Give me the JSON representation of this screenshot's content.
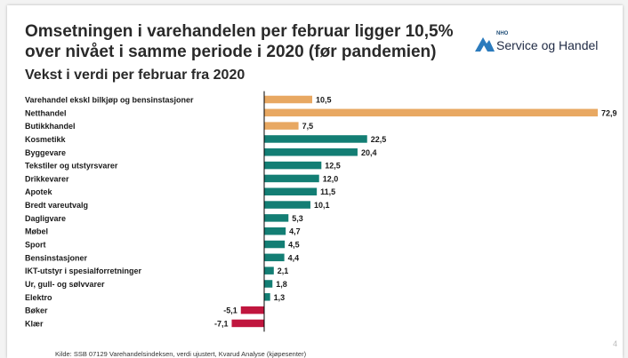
{
  "slide": {
    "title_lines": [
      "Omsetningen i varehandelen per februar ligger 10,5%",
      "over nivået i samme periode i 2020 (før pandemien)"
    ],
    "subtitle": "Vekst i verdi per februar fra 2020",
    "logo": {
      "nho": "NHO",
      "name": "Service og Handel",
      "icon": "nho-logo-icon"
    },
    "footer": "Kilde: SSB 07129 Varehandelsindeksen, verdi ujustert, Kvarud Analyse (kjøpesenter)",
    "page_number": "4"
  },
  "chart_data": {
    "type": "bar",
    "orientation": "horizontal",
    "title": "",
    "xlabel": "",
    "ylabel": "",
    "categories": [
      "Varehandel ekskl bilkjøp og bensinstasjoner",
      "Netthandel",
      "Butikkhandel",
      "Kosmetikk",
      "Byggevare",
      "Tekstiler og utstyrsvarer",
      "Drikkevarer",
      "Apotek",
      "Bredt vareutvalg",
      "Dagligvare",
      "Møbel",
      "Sport",
      "Bensinstasjoner",
      "IKT-utstyr i spesialforretninger",
      "Ur, gull- og sølvvarer",
      "Elektro",
      "Bøker",
      "Klær"
    ],
    "values": [
      10.5,
      72.9,
      7.5,
      22.5,
      20.4,
      12.5,
      12.0,
      11.5,
      10.1,
      5.3,
      4.7,
      4.5,
      4.4,
      2.1,
      1.8,
      1.3,
      -5.1,
      -7.1
    ],
    "value_labels": [
      "10,5",
      "72,9",
      "7,5",
      "22,5",
      "20,4",
      "12,5",
      "12,0",
      "11,5",
      "10,1",
      "5,3",
      "4,7",
      "4,5",
      "4,4",
      "2,1",
      "1,8",
      "1,3",
      "-5,1",
      "-7,1"
    ],
    "bar_groups": [
      "total",
      "total",
      "total",
      "category",
      "category",
      "category",
      "category",
      "category",
      "category",
      "category",
      "category",
      "category",
      "category",
      "category",
      "category",
      "category",
      "negative",
      "negative"
    ],
    "colors": {
      "total": "#e8a862",
      "category": "#137e74",
      "negative": "#c0163e",
      "axis": "#000000",
      "text": "#1a1a1a"
    },
    "xlim": [
      -7.1,
      72.9
    ],
    "grid": false,
    "legend": "none"
  }
}
